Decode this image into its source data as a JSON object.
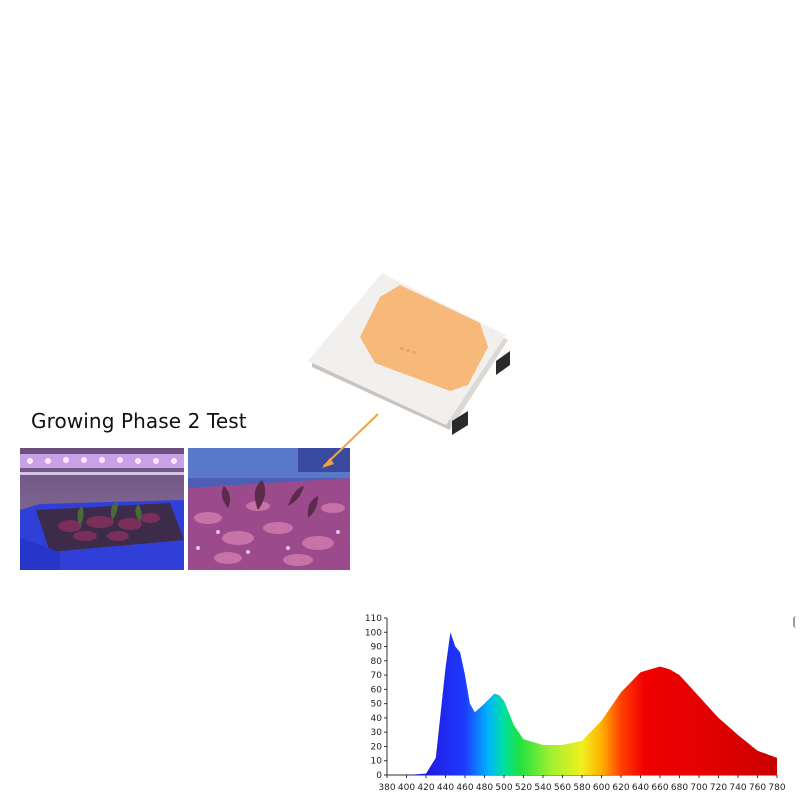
{
  "caption": {
    "text": "Growing Phase 2 Test"
  },
  "colors": {
    "led_phosphor": "#F6B97A",
    "led_body": "#F2F0EE",
    "pointer": "#F0A640",
    "red_peak": "#E00000",
    "blue_peak": "#1414E0"
  },
  "chart_data": {
    "type": "area",
    "x": [
      380,
      400,
      420,
      430,
      440,
      445,
      450,
      455,
      460,
      465,
      470,
      480,
      490,
      495,
      500,
      510,
      520,
      540,
      560,
      580,
      600,
      620,
      640,
      660,
      670,
      680,
      700,
      720,
      740,
      760,
      780
    ],
    "y": [
      0,
      0,
      1,
      12,
      75,
      100,
      90,
      86,
      70,
      50,
      44,
      50,
      57,
      56,
      52,
      35,
      25,
      21,
      21,
      24,
      38,
      58,
      72,
      76,
      74,
      70,
      55,
      40,
      28,
      17,
      12
    ],
    "xticks": [
      "380",
      "400",
      "420",
      "440",
      "460",
      "480",
      "500",
      "520",
      "540",
      "560",
      "580",
      "600",
      "620",
      "640",
      "660",
      "680",
      "700",
      "720",
      "740",
      "760",
      "780"
    ],
    "yticks": [
      "0",
      "10",
      "20",
      "30",
      "40",
      "50",
      "60",
      "70",
      "80",
      "90",
      "100",
      "110"
    ],
    "xlim": [
      380,
      780
    ],
    "ylim": [
      0,
      110
    ],
    "fill": "wavelength-rainbow",
    "grid": false
  }
}
